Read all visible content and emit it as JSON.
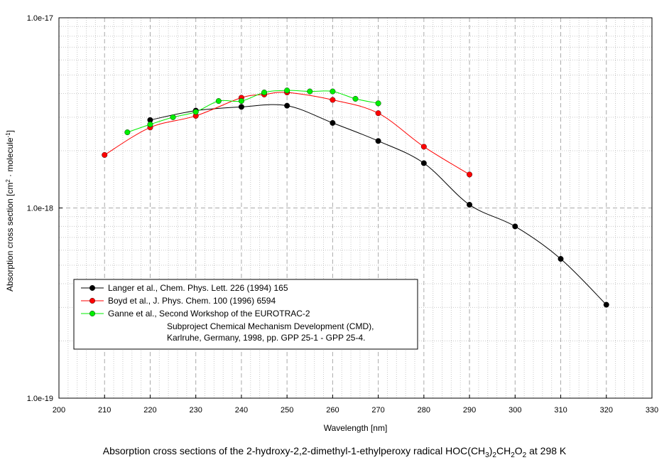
{
  "chart_data": {
    "type": "line",
    "title": "",
    "xlabel": "Wavelength [nm]",
    "ylabel_parts": [
      "Absorption cross section [cm",
      "2",
      " · molecule",
      "-1",
      "]"
    ],
    "xlim": [
      200,
      330
    ],
    "ylim": [
      1e-19,
      1e-17
    ],
    "yscale": "log",
    "grid": true,
    "legend_position": "lower-left",
    "x_ticks": [
      200,
      210,
      220,
      230,
      240,
      250,
      260,
      270,
      280,
      290,
      300,
      310,
      320,
      330
    ],
    "x_tick_labels": [
      "200",
      "210",
      "220",
      "230",
      "240",
      "250",
      "260",
      "270",
      "280",
      "290",
      "300",
      "310",
      "320",
      "330"
    ],
    "y_ticks": [
      1e-19,
      1e-18,
      1e-17
    ],
    "y_tick_labels": [
      "1.0e-19",
      "1.0e-18",
      "1.0e-17"
    ],
    "series": [
      {
        "name": "Langer et al., Chem. Phys. Lett. 226 (1994) 165",
        "color": "#000000",
        "x": [
          220,
          230,
          240,
          250,
          260,
          270,
          280,
          290,
          300,
          310,
          320
        ],
        "values": [
          2.9e-18,
          3.25e-18,
          3.4e-18,
          3.45e-18,
          2.8e-18,
          2.25e-18,
          1.72e-18,
          1.04e-18,
          8e-19,
          5.4e-19,
          3.1e-19
        ]
      },
      {
        "name": "Boyd et al., J. Phys. Chem. 100 (1996) 6594",
        "color": "#ff0000",
        "x": [
          210,
          220,
          230,
          240,
          245,
          250,
          260,
          270,
          280,
          290
        ],
        "values": [
          1.9e-18,
          2.65e-18,
          3.05e-18,
          3.8e-18,
          3.95e-18,
          4.05e-18,
          3.7e-18,
          3.15e-18,
          2.1e-18,
          1.5e-18
        ]
      },
      {
        "name": "Ganne et al., Second Workshop of the EUROTRAC-2",
        "name_lines": [
          "Subproject Chemical Mechanism Development (CMD),",
          "Karlruhe, Germany, 1998, pp. GPP 25-1 - GPP 25-4."
        ],
        "color": "#00ee00",
        "x": [
          215,
          220,
          225,
          230,
          235,
          240,
          245,
          250,
          255,
          260,
          265,
          270
        ],
        "values": [
          2.5e-18,
          2.75e-18,
          3e-18,
          3.2e-18,
          3.65e-18,
          3.65e-18,
          4.05e-18,
          4.15e-18,
          4.1e-18,
          4.1e-18,
          3.75e-18,
          3.55e-18
        ]
      }
    ]
  },
  "caption": {
    "parts": [
      "Absorption cross sections of the 2-hydroxy-2,2-dimethyl-1-ethylperoxy radical HOC(CH",
      "3",
      ")",
      "2",
      "CH",
      "2",
      "O",
      "2",
      " at 298 K"
    ]
  }
}
